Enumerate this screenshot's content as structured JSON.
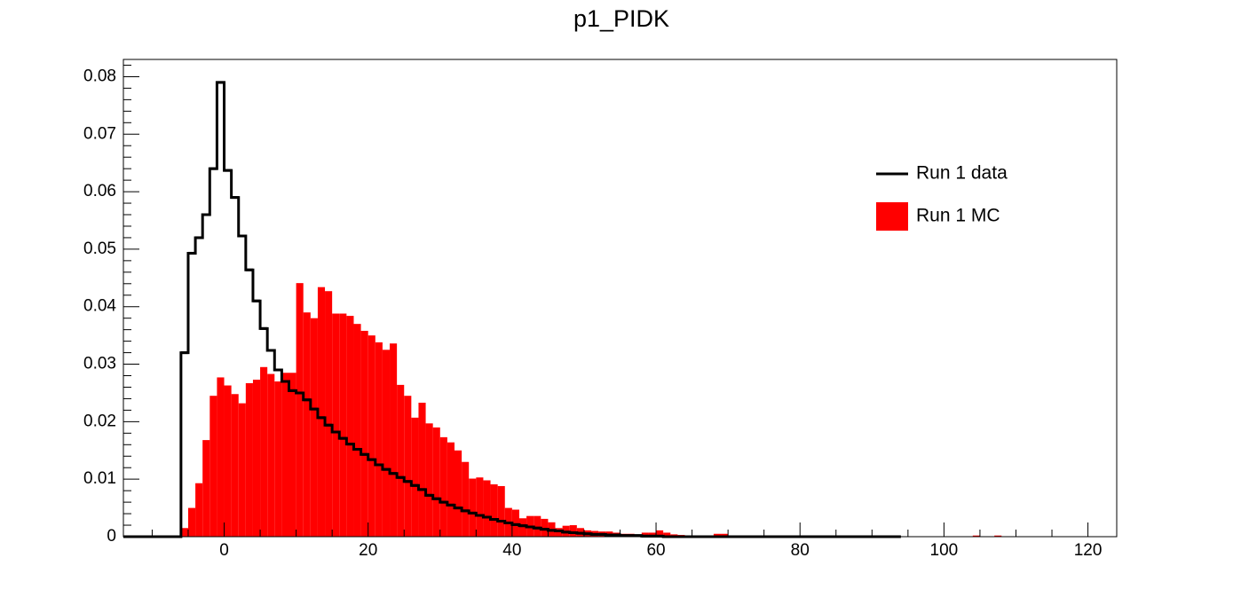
{
  "chart_data": {
    "type": "histogram",
    "title": "p1_PIDK",
    "bins": [
      -14,
      -13,
      -12,
      -11,
      -10,
      -9,
      -8,
      -7,
      -6,
      -5,
      -4,
      -3,
      -2,
      -1,
      0,
      1,
      2,
      3,
      4,
      5,
      6,
      7,
      8,
      9,
      10,
      11,
      12,
      13,
      14,
      15,
      16,
      17,
      18,
      19,
      20,
      21,
      22,
      23,
      24,
      25,
      26,
      27,
      28,
      29,
      30,
      31,
      32,
      33,
      34,
      35,
      36,
      37,
      38,
      39,
      40,
      41,
      42,
      43,
      44,
      45,
      46,
      47,
      48,
      49,
      50,
      51,
      52,
      53,
      54,
      55,
      56,
      57,
      58,
      59,
      60,
      61,
      62,
      63,
      64,
      65,
      66,
      67,
      68,
      69,
      70,
      71,
      72,
      73,
      74,
      75,
      76,
      77,
      78,
      79,
      80,
      81,
      82,
      83,
      84,
      85,
      86,
      87,
      88,
      89,
      90,
      91,
      92,
      93,
      94,
      95,
      96,
      97,
      98,
      99,
      100,
      101,
      102,
      103,
      104,
      105,
      106,
      107,
      108,
      109,
      110,
      111,
      112,
      113,
      114,
      115,
      116,
      117,
      118,
      119,
      120,
      121,
      122,
      123,
      124
    ],
    "series": [
      {
        "name": "Run 1 data",
        "color": "#000000",
        "style": "line",
        "values": [
          0,
          0,
          0,
          0,
          0,
          0,
          0,
          0,
          0.032,
          0.0493,
          0.052,
          0.056,
          0.064,
          0.079,
          0.0637,
          0.059,
          0.0523,
          0.0464,
          0.041,
          0.0362,
          0.0324,
          0.029,
          0.027,
          0.0254,
          0.025,
          0.0238,
          0.0222,
          0.0207,
          0.0194,
          0.0182,
          0.0171,
          0.0161,
          0.0152,
          0.0143,
          0.0134,
          0.0125,
          0.0117,
          0.011,
          0.0103,
          0.0096,
          0.0089,
          0.0082,
          0.0072,
          0.0066,
          0.006,
          0.0055,
          0.005,
          0.0045,
          0.0041,
          0.0037,
          0.0034,
          0.003,
          0.0027,
          0.0024,
          0.0021,
          0.0019,
          0.0017,
          0.0015,
          0.0013,
          0.0011,
          0.001,
          0.0008,
          0.0007,
          0.0006,
          0.0005,
          0.0004,
          0.0004,
          0.0003,
          0.0003,
          0.0002,
          0.0002,
          0.0002,
          0.0001,
          0.0001,
          0.0001,
          0,
          0,
          0,
          0,
          0,
          0,
          0,
          0,
          0,
          0,
          0,
          0,
          0,
          0,
          0,
          0,
          0,
          0,
          0,
          0,
          0,
          0,
          0,
          0,
          0,
          0,
          0,
          0,
          0,
          0,
          0,
          0,
          0,
          null,
          null,
          null,
          null,
          null,
          null,
          null,
          null,
          null,
          null,
          null,
          null,
          null,
          null,
          null,
          null,
          null,
          null,
          null,
          null,
          null,
          null,
          null,
          null,
          null,
          null,
          null,
          null,
          null,
          null
        ]
      },
      {
        "name": "Run 1 MC",
        "color": "#ff0000",
        "style": "fill",
        "values": [
          0,
          0,
          0,
          0,
          0,
          0,
          0,
          0,
          0.0015,
          0.005,
          0.0093,
          0.0168,
          0.0245,
          0.0277,
          0.0263,
          0.0248,
          0.0232,
          0.0267,
          0.0273,
          0.0295,
          0.0283,
          0.027,
          0.0285,
          0.0285,
          0.0441,
          0.039,
          0.038,
          0.0434,
          0.0427,
          0.0388,
          0.0388,
          0.0384,
          0.037,
          0.0358,
          0.035,
          0.0338,
          0.0325,
          0.0336,
          0.0264,
          0.0245,
          0.0207,
          0.0233,
          0.0197,
          0.019,
          0.0173,
          0.0164,
          0.015,
          0.013,
          0.0101,
          0.0103,
          0.0098,
          0.0091,
          0.0088,
          0.005,
          0.0047,
          0.0032,
          0.0036,
          0.0036,
          0.0031,
          0.0025,
          0.0015,
          0.0019,
          0.002,
          0.0015,
          0.0011,
          0.001,
          0.0009,
          0.0009,
          0.0007,
          0.0005,
          0.0005,
          0.0002,
          0.0007,
          0.0007,
          0.0011,
          0.0007,
          0.0004,
          0.0003,
          0.0002,
          0.0002,
          0.0001,
          0.0001,
          0.0005,
          0.0005,
          0.0002,
          0.0001,
          0.0002,
          0,
          0,
          0,
          0,
          0,
          0,
          0,
          0,
          0,
          0,
          0,
          0,
          0,
          0,
          0,
          0,
          0,
          0,
          0,
          0,
          0,
          0,
          0,
          0,
          0,
          0,
          0,
          0,
          0,
          0,
          0,
          0.0002,
          0,
          0,
          0.0002,
          0,
          0,
          0,
          0,
          0,
          0,
          0,
          0,
          0,
          0,
          0,
          0,
          0,
          0,
          0
        ]
      }
    ],
    "xlim": [
      -14,
      124
    ],
    "xticks": [
      0,
      20,
      40,
      60,
      80,
      100,
      120
    ],
    "ylim": [
      0,
      0.083
    ],
    "yticks": [
      0,
      0.01,
      0.02,
      0.03,
      0.04,
      0.05,
      0.06,
      0.07,
      0.08
    ],
    "legend": "upper right"
  }
}
